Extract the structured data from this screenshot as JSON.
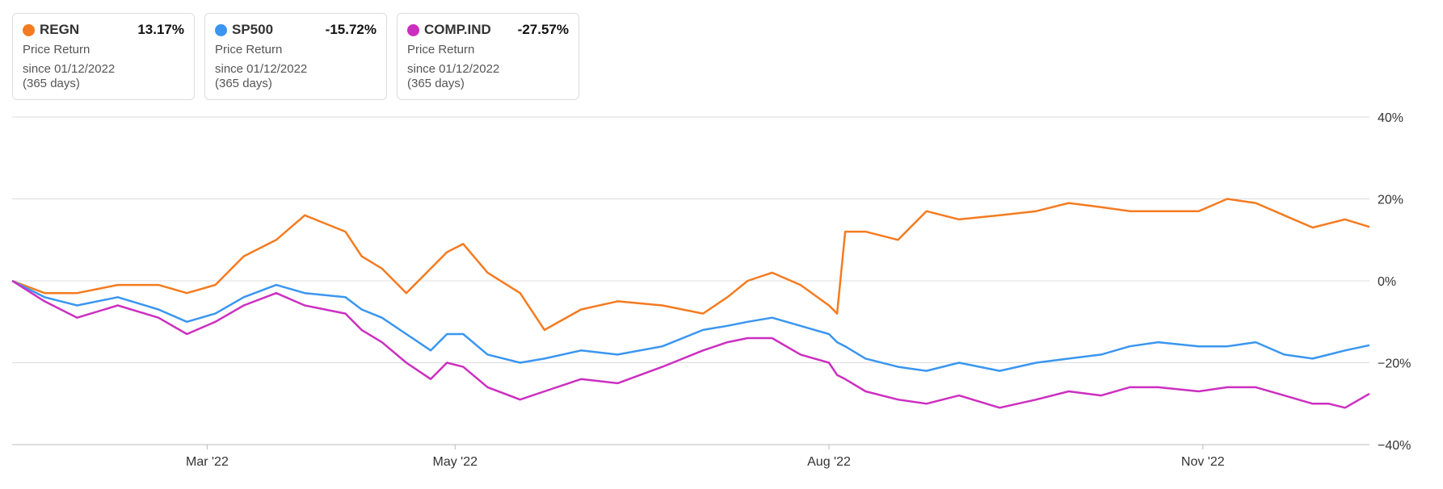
{
  "legend": [
    {
      "name": "REGN",
      "value": "13.17%",
      "subtitle": "Price Return",
      "since": "since 01/12/2022",
      "days": "(365 days)",
      "color": "#f47b20"
    },
    {
      "name": "SP500",
      "value": "-15.72%",
      "subtitle": "Price Return",
      "since": "since 01/12/2022",
      "days": "(365 days)",
      "color": "#3a96f0"
    },
    {
      "name": "COMP.IND",
      "value": "-27.57%",
      "subtitle": "Price Return",
      "since": "since 01/12/2022",
      "days": "(365 days)",
      "color": "#cc2fc0"
    }
  ],
  "chart_data": {
    "type": "line",
    "x_ticks": [
      "Mar '22",
      "May '22",
      "Aug '22",
      "Nov '22"
    ],
    "y_ticks": [
      "40%",
      "20%",
      "0%",
      "−20%",
      "−40%"
    ],
    "ylim": [
      -40,
      40
    ],
    "grid": true,
    "x": [
      "2022-01-12",
      "2022-01-20",
      "2022-01-28",
      "2022-02-07",
      "2022-02-17",
      "2022-02-24",
      "2022-03-03",
      "2022-03-10",
      "2022-03-18",
      "2022-03-25",
      "2022-04-04",
      "2022-04-08",
      "2022-04-13",
      "2022-04-19",
      "2022-04-25",
      "2022-04-29",
      "2022-05-03",
      "2022-05-09",
      "2022-05-17",
      "2022-05-23",
      "2022-06-01",
      "2022-06-10",
      "2022-06-21",
      "2022-07-01",
      "2022-07-07",
      "2022-07-12",
      "2022-07-18",
      "2022-07-25",
      "2022-08-01",
      "2022-08-03",
      "2022-08-05",
      "2022-08-10",
      "2022-08-18",
      "2022-08-25",
      "2022-09-02",
      "2022-09-12",
      "2022-09-21",
      "2022-09-29",
      "2022-10-07",
      "2022-10-14",
      "2022-10-21",
      "2022-10-31",
      "2022-11-07",
      "2022-11-14",
      "2022-11-21",
      "2022-11-28",
      "2022-12-02",
      "2022-12-06",
      "2022-12-12"
    ],
    "series": [
      {
        "name": "REGN",
        "values": [
          0,
          -3,
          -3,
          -1,
          -1,
          -3,
          -1,
          6,
          10,
          16,
          12,
          6,
          3,
          -3,
          3,
          7,
          9,
          2,
          -3,
          -12,
          -7,
          -5,
          -6,
          -8,
          -4,
          0,
          2,
          -1,
          -6,
          -8,
          12,
          12,
          10,
          17,
          15,
          16,
          17,
          19,
          18,
          17,
          17,
          17,
          20,
          19,
          16,
          13,
          14,
          15,
          13.17
        ]
      },
      {
        "name": "SP500",
        "values": [
          0,
          -4,
          -6,
          -4,
          -7,
          -10,
          -8,
          -4,
          -1,
          -3,
          -4,
          -7,
          -9,
          -13,
          -17,
          -13,
          -13,
          -18,
          -20,
          -19,
          -17,
          -18,
          -16,
          -12,
          -11,
          -10,
          -9,
          -11,
          -13,
          -15,
          -16,
          -19,
          -21,
          -22,
          -20,
          -22,
          -20,
          -19,
          -18,
          -16,
          -15,
          -16,
          -16,
          -15,
          -18,
          -19,
          -18,
          -17,
          -15.72
        ]
      },
      {
        "name": "COMP.IND",
        "values": [
          0,
          -5,
          -9,
          -6,
          -9,
          -13,
          -10,
          -6,
          -3,
          -6,
          -8,
          -12,
          -15,
          -20,
          -24,
          -20,
          -21,
          -26,
          -29,
          -27,
          -24,
          -25,
          -21,
          -17,
          -15,
          -14,
          -14,
          -18,
          -20,
          -23,
          -24,
          -27,
          -29,
          -30,
          -28,
          -31,
          -29,
          -27,
          -28,
          -26,
          -26,
          -27,
          -26,
          -26,
          -28,
          -30,
          -30,
          -31,
          -27.57
        ]
      }
    ]
  }
}
